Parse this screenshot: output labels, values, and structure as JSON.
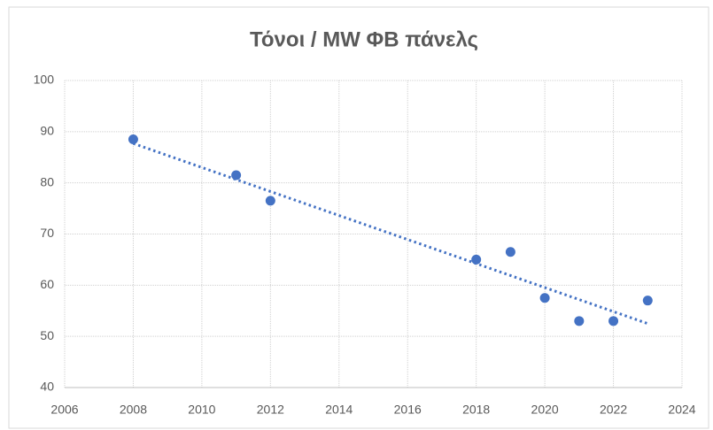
{
  "chart_data": {
    "type": "scatter",
    "title": "Τόνοι / MW ΦΒ πάνελς",
    "x": [
      2008,
      2011,
      2012,
      2018,
      2019,
      2020,
      2021,
      2022,
      2023
    ],
    "values": [
      88.5,
      81.5,
      76.5,
      65,
      66.5,
      57.5,
      53,
      53,
      57
    ],
    "color": "#4472c4",
    "trendline": {
      "x": [
        2008,
        2023
      ],
      "values": [
        87.7,
        52.5
      ]
    },
    "xlim": [
      2006,
      2024
    ],
    "xticks": [
      2006,
      2008,
      2010,
      2012,
      2014,
      2016,
      2018,
      2020,
      2022,
      2024
    ],
    "ylim": [
      40,
      100
    ],
    "yticks": [
      40,
      50,
      60,
      70,
      80,
      90,
      100
    ],
    "grid": true
  }
}
